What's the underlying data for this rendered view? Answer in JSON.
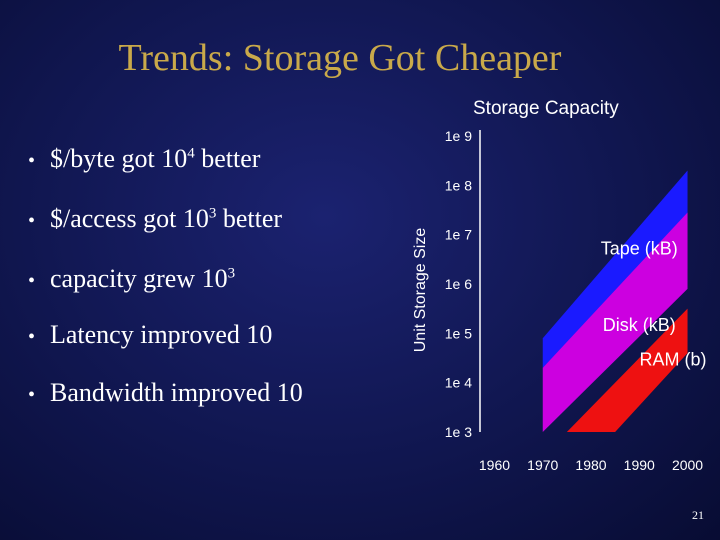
{
  "slide": {
    "title": "Trends: Storage Got Cheaper",
    "bullets": [
      {
        "prefix": "$/byte got 10",
        "sup": "4",
        "suffix": " better"
      },
      {
        "prefix": "$/access got 10",
        "sup": "3",
        "suffix": " better"
      },
      {
        "prefix": "capacity grew 10",
        "sup": "3",
        "suffix": ""
      },
      {
        "prefix": "Latency improved 10",
        "sup": "",
        "suffix": ""
      },
      {
        "prefix": "Bandwidth improved 10",
        "sup": "",
        "suffix": ""
      }
    ],
    "bullet_glyph": "•",
    "slide_number": "21"
  },
  "chart_data": {
    "type": "area",
    "title": "Storage Capacity",
    "xlabel": "",
    "ylabel": "Unit Storage Size",
    "y_scale": "log10",
    "ylim_exponent": [
      3,
      9
    ],
    "xlim": [
      1957,
      2003
    ],
    "y_tick_labels": [
      "1e 9",
      "1e 8",
      "1e 7",
      "1e 6",
      "1e 5",
      "1e 4",
      "1e 3"
    ],
    "y_tick_exponents": [
      9,
      8,
      7,
      6,
      5,
      4,
      3
    ],
    "x_tick_labels": [
      "1960",
      "1970",
      "1980",
      "1990",
      "2000"
    ],
    "x_tick_values": [
      1960,
      1970,
      1980,
      1990,
      2000
    ],
    "series": [
      {
        "name": "Tape (kB)",
        "color": "#1a1aff",
        "upper": [
          [
            1970,
            4.9
          ],
          [
            2000,
            8.3
          ]
        ],
        "lower": [
          [
            1970,
            4.3
          ],
          [
            2000,
            7.3
          ]
        ]
      },
      {
        "name": "Disk (kB)",
        "color": "#cc00e0",
        "upper": [
          [
            1970,
            4.3
          ],
          [
            2000,
            7.45
          ]
        ],
        "lower": [
          [
            1970,
            3.0
          ],
          [
            2000,
            5.9
          ]
        ]
      },
      {
        "name": "RAM (b)",
        "color": "#ee1111",
        "upper": [
          [
            1975,
            3.0
          ],
          [
            2000,
            5.5
          ]
        ],
        "lower": [
          [
            1985,
            3.0
          ],
          [
            2000,
            4.6
          ]
        ]
      }
    ],
    "labels": [
      {
        "text": "Tape (kB)",
        "x": 1990,
        "y": 6.6
      },
      {
        "text": "Disk (kB)",
        "x": 1990,
        "y": 5.05
      },
      {
        "text": "RAM (b)",
        "x": 1997,
        "y": 4.35
      }
    ]
  }
}
